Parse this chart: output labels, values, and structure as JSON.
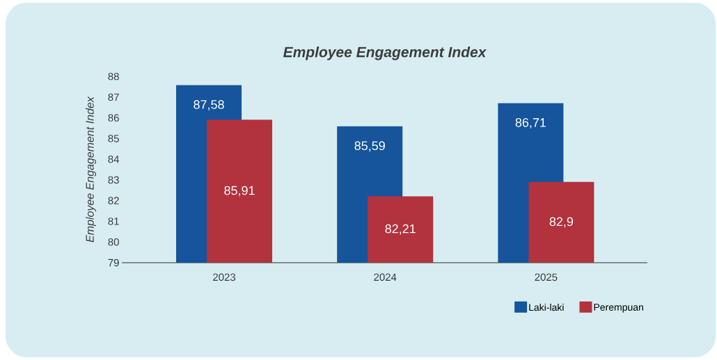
{
  "chart_data": {
    "type": "bar",
    "title": "Employee Engagement Index",
    "ylabel": "Employee Engagement Index",
    "categories": [
      "2023",
      "2024",
      "2025"
    ],
    "series": [
      {
        "name": "Laki-laki",
        "color": "#16549c",
        "values": [
          87.58,
          85.59,
          86.71
        ],
        "value_labels": [
          "87,58",
          "85,59",
          "86,71"
        ]
      },
      {
        "name": "Perempuan",
        "color": "#b2323e",
        "values": [
          85.91,
          82.21,
          82.9
        ],
        "value_labels": [
          "85,91",
          "82,21",
          "82,9"
        ]
      }
    ],
    "ylim": [
      79,
      88
    ],
    "yticks": [
      79,
      80,
      81,
      82,
      83,
      84,
      85,
      86,
      87,
      88
    ],
    "legend": "bottom right"
  }
}
